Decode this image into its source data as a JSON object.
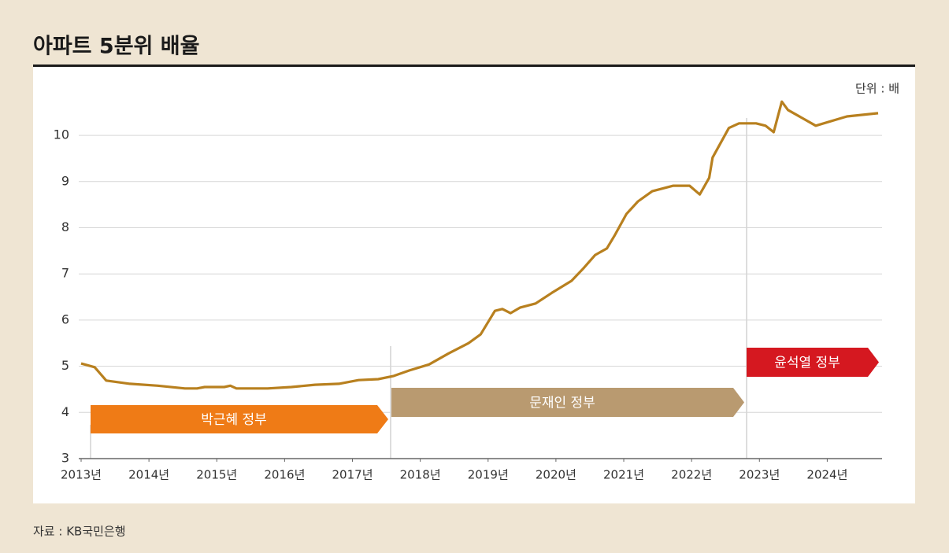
{
  "chart_data": {
    "type": "line",
    "title": "아파트 5분위 배율",
    "unit_label": "단위 : 배",
    "source": "자료 : KB국민은행",
    "annotations": [
      "박근혜 정부",
      "문재인 정부",
      "윤석열 정부"
    ],
    "xlim": [
      2013,
      2024.75
    ],
    "xticks": [
      {
        "value": 2013,
        "label": "2013년"
      },
      {
        "value": 2014,
        "label": "2014년"
      },
      {
        "value": 2015,
        "label": "2015년"
      },
      {
        "value": 2016,
        "label": "2016년"
      },
      {
        "value": 2017,
        "label": "2017년"
      },
      {
        "value": 2018,
        "label": "2018년"
      },
      {
        "value": 2019,
        "label": "2019년"
      },
      {
        "value": 2020,
        "label": "2020년"
      },
      {
        "value": 2021,
        "label": "2021년"
      },
      {
        "value": 2022,
        "label": "2022년"
      },
      {
        "value": 2023,
        "label": "2023년"
      },
      {
        "value": 2024,
        "label": "2024년"
      }
    ],
    "ylim": [
      3,
      11
    ],
    "yticks": [
      3,
      4,
      5,
      6,
      7,
      8,
      9,
      10
    ],
    "grid": true,
    "series": [
      {
        "name": "5분위 배율",
        "color": "#b8801f",
        "x": [
          2013.0,
          2013.2,
          2013.37,
          2013.72,
          2014.13,
          2014.53,
          2014.71,
          2014.82,
          2015.11,
          2015.2,
          2015.29,
          2015.75,
          2016.1,
          2016.45,
          2016.8,
          2017.09,
          2017.38,
          2017.61,
          2017.84,
          2018.13,
          2018.42,
          2018.71,
          2018.89,
          2019.1,
          2019.21,
          2019.33,
          2019.47,
          2019.7,
          2019.94,
          2020.23,
          2020.4,
          2020.58,
          2020.75,
          2020.86,
          2021.04,
          2021.21,
          2021.42,
          2021.73,
          2021.97,
          2022.12,
          2022.26,
          2022.31,
          2022.55,
          2022.7,
          2022.95,
          2023.09,
          2023.21,
          2023.33,
          2023.42,
          2023.83,
          2024.29,
          2024.75
        ],
        "values": [
          5.06,
          4.98,
          4.69,
          4.62,
          4.58,
          4.52,
          4.52,
          4.55,
          4.55,
          4.58,
          4.52,
          4.52,
          4.55,
          4.6,
          4.62,
          4.7,
          4.72,
          4.79,
          4.91,
          5.04,
          5.28,
          5.5,
          5.69,
          6.2,
          6.24,
          6.15,
          6.27,
          6.36,
          6.59,
          6.85,
          7.11,
          7.41,
          7.55,
          7.82,
          8.3,
          8.57,
          8.79,
          8.91,
          8.91,
          8.72,
          9.08,
          9.52,
          10.16,
          10.26,
          10.26,
          10.21,
          10.07,
          10.73,
          10.55,
          10.21,
          10.41,
          10.48
        ]
      }
    ]
  }
}
